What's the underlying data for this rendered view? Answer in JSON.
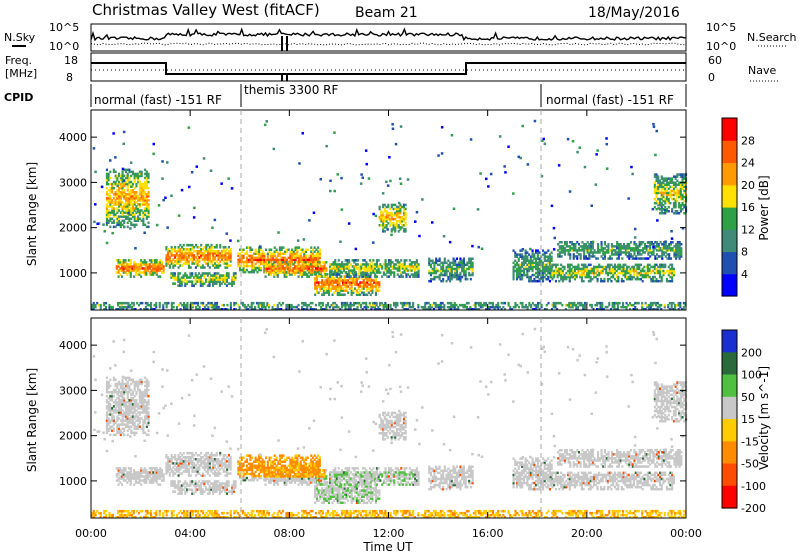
{
  "header": {
    "station": "Christmas Valley West (fitACF)",
    "beam": "Beam 21",
    "date": "18/May/2016"
  },
  "noise_panel": {
    "left_label": "N.Sky",
    "left_ticks": [
      "10^5",
      "10^0"
    ],
    "right_label": "N.Search",
    "right_ticks": [
      "10^5",
      "10^0"
    ]
  },
  "freq_panel": {
    "left_label_1": "Freq.",
    "left_label_2": "[MHz]",
    "left_ticks": [
      "18",
      "8"
    ],
    "right_label": "Nave",
    "right_ticks": [
      "60",
      "0"
    ]
  },
  "cpid": {
    "label": "CPID",
    "segments": [
      "normal (fast) -151 RF",
      "themis 3300 RF",
      "normal (fast) -151 RF"
    ]
  },
  "colors": {
    "power": [
      "#0000ff",
      "#1f4fb0",
      "#3f8a78",
      "#2ea046",
      "#ffe000",
      "#ff9a00",
      "#ff5a00",
      "#ff0000"
    ],
    "velocity": [
      "#1a2fd0",
      "#2a6a3a",
      "#50c040",
      "#c8c8c8",
      "#ffcc00",
      "#ff8c00",
      "#ff4c00",
      "#ff0000"
    ],
    "grey_scatter": "#c8c8c8"
  },
  "chart_data": [
    {
      "type": "heatmap",
      "ylabel": "Slant Range [km]",
      "xlabel": "Time UT",
      "x_ticks": [
        "00:00",
        "04:00",
        "08:00",
        "12:00",
        "16:00",
        "20:00",
        "00:00"
      ],
      "y_ticks": [
        "1000",
        "2000",
        "3000",
        "4000"
      ],
      "ylim": [
        180,
        4600
      ],
      "colorbar_label": "Power [dB]",
      "colorbar_ticks": [
        "4",
        "8",
        "12",
        "16",
        "20",
        "24",
        "28"
      ],
      "colorbar_range": [
        0,
        32
      ],
      "cpid_change_hours": [
        6.0,
        18.0
      ]
    },
    {
      "type": "heatmap",
      "ylabel": "Slant Range [km]",
      "xlabel": "Time UT",
      "x_ticks": [
        "00:00",
        "04:00",
        "08:00",
        "12:00",
        "16:00",
        "20:00",
        "00:00"
      ],
      "y_ticks": [
        "1000",
        "2000",
        "3000",
        "4000"
      ],
      "ylim": [
        180,
        4600
      ],
      "colorbar_label": "Velocity [m s^-1]",
      "colorbar_ticks": [
        "200",
        "100",
        "50",
        "15",
        "-15",
        "-50",
        "-100",
        "-200"
      ],
      "cpid_change_hours": [
        6.0,
        18.0
      ]
    }
  ],
  "echo_regions": [
    {
      "t0": 0.6,
      "t1": 2.3,
      "r0": 2000,
      "r1": 3300,
      "pw": 5
    },
    {
      "t0": 1.0,
      "t1": 2.9,
      "r0": 900,
      "r1": 1300,
      "pw": 6
    },
    {
      "t0": 3.0,
      "t1": 5.6,
      "r0": 1100,
      "r1": 1600,
      "pw": 6
    },
    {
      "t0": 3.2,
      "t1": 5.8,
      "r0": 700,
      "r1": 1000,
      "pw": 4
    },
    {
      "t0": 5.9,
      "t1": 9.2,
      "r0": 1000,
      "r1": 1550,
      "pw": 6
    },
    {
      "t0": 7.0,
      "t1": 9.5,
      "r0": 900,
      "r1": 1250,
      "pw": 6
    },
    {
      "t0": 9.0,
      "t1": 11.6,
      "r0": 500,
      "r1": 1000,
      "pw": 6
    },
    {
      "t0": 9.6,
      "t1": 13.2,
      "r0": 900,
      "r1": 1300,
      "pw": 4
    },
    {
      "t0": 11.6,
      "t1": 12.7,
      "r0": 1900,
      "r1": 2500,
      "pw": 5
    },
    {
      "t0": 13.6,
      "t1": 15.4,
      "r0": 800,
      "r1": 1300,
      "pw": 3
    },
    {
      "t0": 17.0,
      "t1": 18.6,
      "r0": 800,
      "r1": 1500,
      "pw": 3
    },
    {
      "t0": 18.8,
      "t1": 23.8,
      "r0": 1300,
      "r1": 1700,
      "pw": 3
    },
    {
      "t0": 18.5,
      "t1": 23.5,
      "r0": 800,
      "r1": 1200,
      "pw": 4
    },
    {
      "t0": 22.7,
      "t1": 24.0,
      "r0": 2300,
      "r1": 3200,
      "pw": 4
    },
    {
      "t0": 0.0,
      "t1": 24.0,
      "r0": 180,
      "r1": 350,
      "pw": 3
    }
  ]
}
